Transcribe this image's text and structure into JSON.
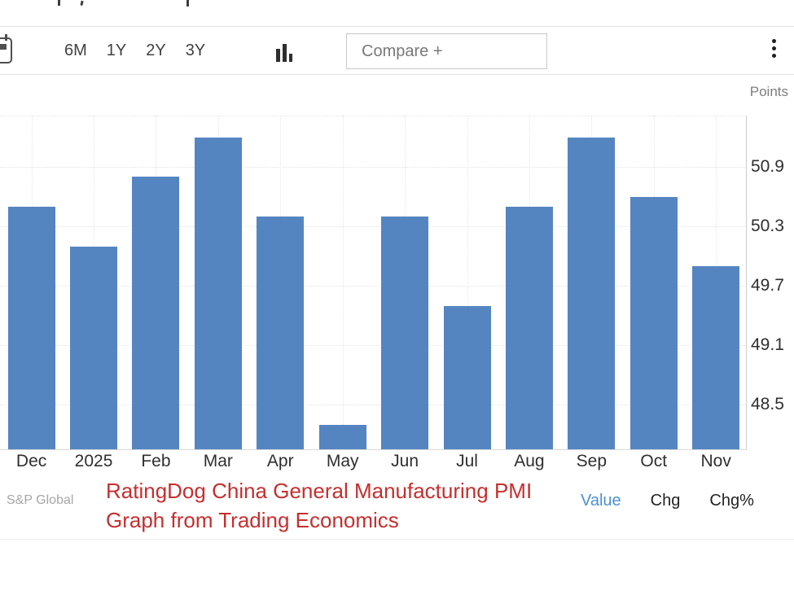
{
  "toolbar": {
    "calendar_icon": "calendar-icon",
    "range_buttons": [
      "6M",
      "1Y",
      "2Y",
      "3Y"
    ],
    "chart_type_icon": "bar-chart-icon",
    "compare_button_label": "Compare +",
    "menu_icon": "kebab-menu-icon"
  },
  "chart_data": {
    "type": "bar",
    "title": "RatingDog China General Manufacturing PMI",
    "unit_label": "Points",
    "categories": [
      "Dec",
      "2025",
      "Feb",
      "Mar",
      "Apr",
      "May",
      "Jun",
      "Jul",
      "Aug",
      "Sep",
      "Oct",
      "Nov"
    ],
    "values": [
      50.5,
      50.1,
      50.8,
      51.2,
      50.4,
      48.3,
      50.4,
      49.5,
      50.5,
      51.2,
      50.6,
      49.9
    ],
    "yticks": [
      50.9,
      50.3,
      49.7,
      49.1,
      48.5
    ],
    "ylim": [
      48.05,
      51.42
    ],
    "xlabel": "",
    "ylabel": "Points",
    "grid": true,
    "legend": "none",
    "bar_color": "#5585c1"
  },
  "footer": {
    "source": "S&P Global",
    "annotation_line1": "RatingDog China General Manufacturing PMI",
    "annotation_line2": "Graph from Trading Economics",
    "tabs": [
      {
        "label": "Value",
        "active": true
      },
      {
        "label": "Chg",
        "active": false
      },
      {
        "label": "Chg%",
        "active": false
      }
    ]
  },
  "colors": {
    "bar_blue": "#5585c1",
    "active_tab_blue": "#4a90d2",
    "annotation_red": "#c62f2f",
    "axis_border": "#cccccc"
  }
}
